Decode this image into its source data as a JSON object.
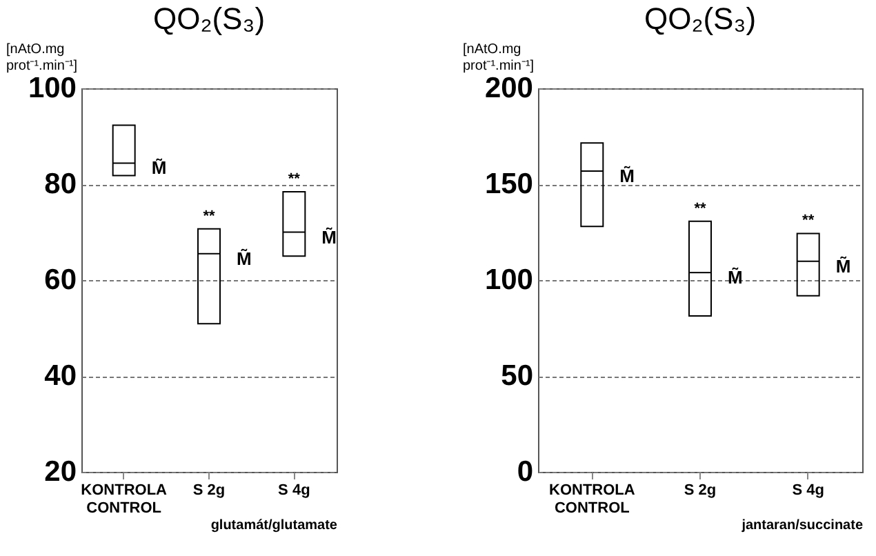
{
  "chart_data": [
    {
      "type": "box",
      "title": "QO₂(S₃)",
      "ylabel": "[nAtO.mg\nprot⁻¹.min⁻¹]",
      "xlabel": "glutamát/glutamate",
      "color": "#000000",
      "categories": [
        "KONTROLA\nCONTROL",
        "S 2g",
        "S 4g"
      ],
      "boxes": [
        {
          "low": 81.8,
          "q1": 81.8,
          "median": 84.4,
          "q3": 92.3,
          "high": 92.3
        },
        {
          "low": 50.9,
          "q1": 50.9,
          "median": 65.5,
          "q3": 70.7,
          "high": 70.7
        },
        {
          "low": 65.0,
          "q1": 65.0,
          "median": 70.0,
          "q3": 78.4,
          "high": 78.4
        }
      ],
      "ylim": [
        20,
        100
      ],
      "yticks": [
        20,
        40,
        60,
        80,
        100
      ],
      "grid": "y",
      "annotations": [
        {
          "text": "M̃",
          "x": "KONTROLA\nCONTROL",
          "y": 84.4
        },
        {
          "text": "**",
          "x": "S 2g",
          "y": 70.7
        },
        {
          "text": "M̃",
          "x": "S 2g",
          "y": 65.5
        },
        {
          "text": "**",
          "x": "S 4g",
          "y": 78.4
        },
        {
          "text": "M̃",
          "x": "S 4g",
          "y": 70.0
        }
      ]
    },
    {
      "type": "box",
      "title": "QO₂(S₃)",
      "ylabel": "[nAtO.mg\nprot⁻¹.min⁻¹]",
      "xlabel": "jantaran/succinate",
      "color": "#000000",
      "categories": [
        "KONTROLA\nCONTROL",
        "S 2g",
        "S 4g"
      ],
      "boxes": [
        {
          "low": 128,
          "q1": 128,
          "median": 156.8,
          "q3": 171.5,
          "high": 171.5
        },
        {
          "low": 81.3,
          "q1": 81.3,
          "median": 103.9,
          "q3": 130.7,
          "high": 130.7
        },
        {
          "low": 91.8,
          "q1": 91.8,
          "median": 109.8,
          "q3": 124.3,
          "high": 124.3
        }
      ],
      "ylim": [
        0,
        200
      ],
      "yticks": [
        0,
        50,
        100,
        150,
        200
      ],
      "grid": "y",
      "annotations": [
        {
          "text": "M̃",
          "x": "KONTROLA\nCONTROL",
          "y": 156.8
        },
        {
          "text": "**",
          "x": "S 2g",
          "y": 130.7
        },
        {
          "text": "M̃",
          "x": "S 2g",
          "y": 103.9
        },
        {
          "text": "**",
          "x": "S 4g",
          "y": 124.3
        },
        {
          "text": "M̃",
          "x": "S 4g",
          "y": 109.8
        }
      ]
    }
  ]
}
